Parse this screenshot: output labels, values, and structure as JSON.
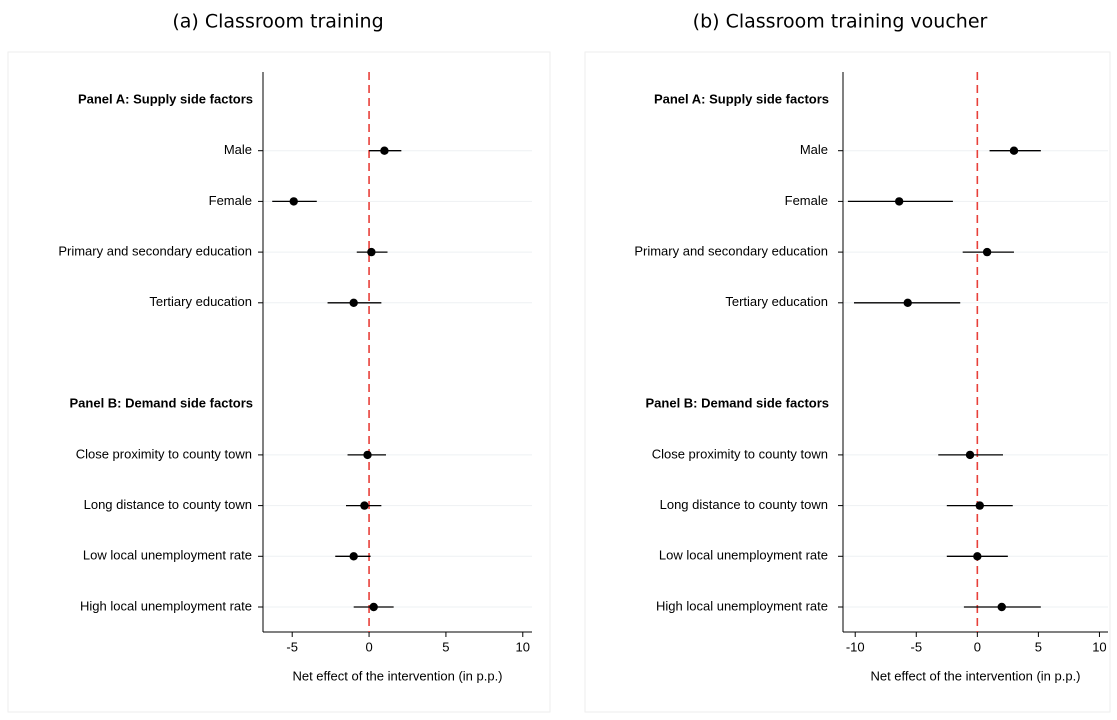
{
  "chart_data": [
    {
      "type": "dot-errorbar",
      "title": "(a) Classroom training",
      "xlabel": "Net effect of the intervention (in p.p.)",
      "xlim": [
        -6.9,
        10.6
      ],
      "xticks": [
        -5,
        0,
        5,
        10
      ],
      "refline": 0,
      "color": "#000000",
      "refline_color": "#e8403a",
      "groups": [
        {
          "name": "Panel A: Supply side factors",
          "categories": [
            "Male",
            "Female",
            "Primary and secondary education",
            "Tertiary education"
          ],
          "values": [
            1.0,
            -4.9,
            0.15,
            -1.0
          ],
          "lower": [
            0.0,
            -6.3,
            -0.8,
            -2.7
          ],
          "upper": [
            2.1,
            -3.4,
            1.2,
            0.8
          ]
        },
        {
          "name": "Panel B: Demand side factors",
          "categories": [
            "Close proximity to county town",
            "Long distance to county town",
            "Low local unemployment rate",
            "High local unemployment rate"
          ],
          "values": [
            -0.1,
            -0.3,
            -1.0,
            0.3
          ],
          "lower": [
            -1.4,
            -1.5,
            -2.2,
            -1.0
          ],
          "upper": [
            1.1,
            0.8,
            0.1,
            1.6
          ]
        }
      ]
    },
    {
      "type": "dot-errorbar",
      "title": "(b) Classroom training voucher",
      "xlabel": "Net effect of the intervention (in p.p.)",
      "xlim": [
        -11.0,
        10.7
      ],
      "xticks": [
        -10,
        -5,
        0,
        5,
        10
      ],
      "refline": 0,
      "color": "#000000",
      "refline_color": "#e8403a",
      "groups": [
        {
          "name": "Panel A: Supply side factors",
          "categories": [
            "Male",
            "Female",
            "Primary and secondary education",
            "Tertiary education"
          ],
          "values": [
            3.0,
            -6.4,
            0.8,
            -5.7
          ],
          "lower": [
            1.0,
            -10.6,
            -1.2,
            -10.1
          ],
          "upper": [
            5.2,
            -2.0,
            3.0,
            -1.4
          ]
        },
        {
          "name": "Panel B: Demand side factors",
          "categories": [
            "Close proximity to county town",
            "Long distance to county town",
            "Low local unemployment rate",
            "High local unemployment rate"
          ],
          "values": [
            -0.6,
            0.2,
            0.0,
            2.0
          ],
          "lower": [
            -3.2,
            -2.5,
            -2.5,
            -1.1
          ],
          "upper": [
            2.1,
            2.9,
            2.5,
            5.2
          ]
        }
      ]
    }
  ]
}
